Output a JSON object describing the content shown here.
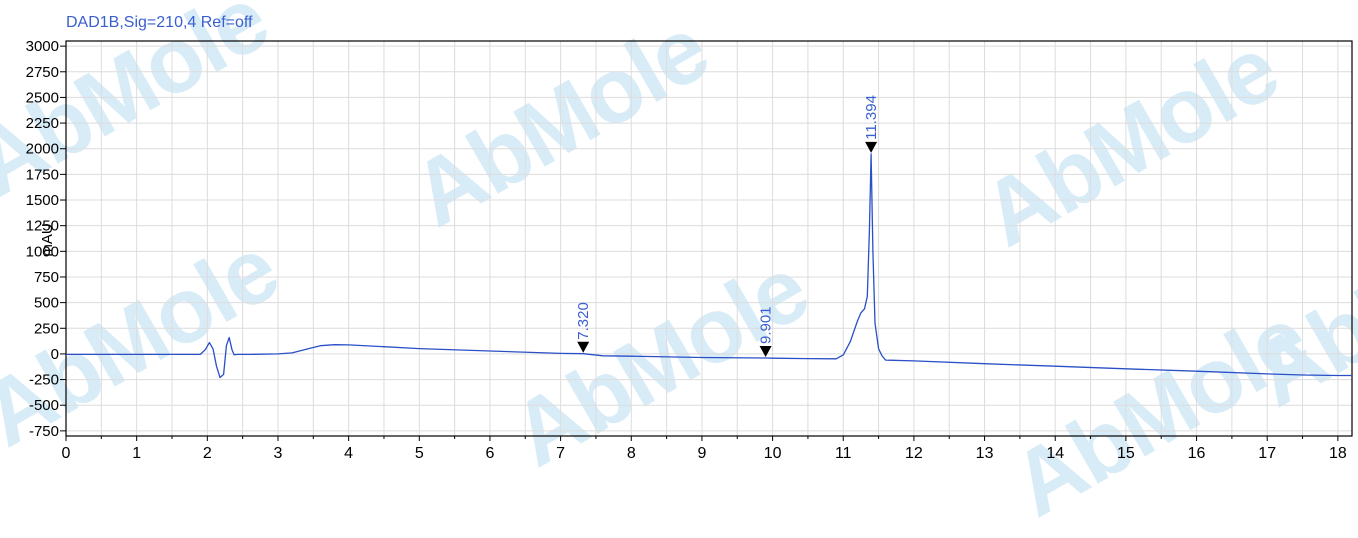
{
  "chart_data": {
    "type": "line",
    "signal_label": "DAD1B,Sig=210,4  Ref=off",
    "ylabel": "mAU",
    "xlabel": "",
    "xlim": [
      0,
      18.2
    ],
    "ylim": [
      -800,
      3050
    ],
    "x_ticks": [
      0,
      1,
      2,
      3,
      4,
      5,
      6,
      7,
      8,
      9,
      10,
      11,
      12,
      13,
      14,
      15,
      16,
      17,
      18
    ],
    "y_ticks": [
      -750,
      -500,
      -250,
      0,
      250,
      500,
      750,
      1000,
      1250,
      1500,
      1750,
      2000,
      2250,
      2500,
      2750,
      3000
    ],
    "grid": true,
    "colors": {
      "trace": "#2a4fc7",
      "peak_label": "#3a5fcf",
      "grid": "#dcdcdc",
      "axis": "#000000"
    },
    "series": [
      {
        "x": [
          0,
          1.9,
          1.97,
          2.03,
          2.08,
          2.13,
          2.18,
          2.23,
          2.27,
          2.31,
          2.35,
          2.38,
          2.42,
          2.6,
          3.0,
          3.2,
          3.4,
          3.6,
          3.8,
          4.0,
          4.5,
          5,
          6,
          7,
          7.32,
          7.6,
          8,
          9,
          9.901,
          10,
          10.5,
          10.9,
          11.0,
          11.1,
          11.2,
          11.25,
          11.3,
          11.34,
          11.37,
          11.394,
          11.42,
          11.45,
          11.5,
          11.55,
          11.6,
          12,
          13,
          14,
          15,
          16,
          17,
          17.5,
          18,
          18.2
        ],
        "y": [
          -5,
          -5,
          40,
          110,
          50,
          -120,
          -230,
          -200,
          80,
          160,
          40,
          -10,
          -5,
          -5,
          0,
          10,
          45,
          80,
          90,
          88,
          70,
          52,
          28,
          5,
          2,
          -18,
          -22,
          -35,
          -40,
          -42,
          -46,
          -48,
          -10,
          120,
          320,
          400,
          440,
          560,
          1200,
          1950,
          1000,
          300,
          50,
          -20,
          -60,
          -68,
          -95,
          -120,
          -145,
          -168,
          -195,
          -205,
          -210,
          -210
        ]
      }
    ],
    "peaks": [
      {
        "rt": "7.320",
        "x": 7.32,
        "y": 2
      },
      {
        "rt": "9.901",
        "x": 9.901,
        "y": -40
      },
      {
        "rt": "11.394",
        "x": 11.394,
        "y": 1950
      }
    ],
    "watermark": "AbMole"
  }
}
